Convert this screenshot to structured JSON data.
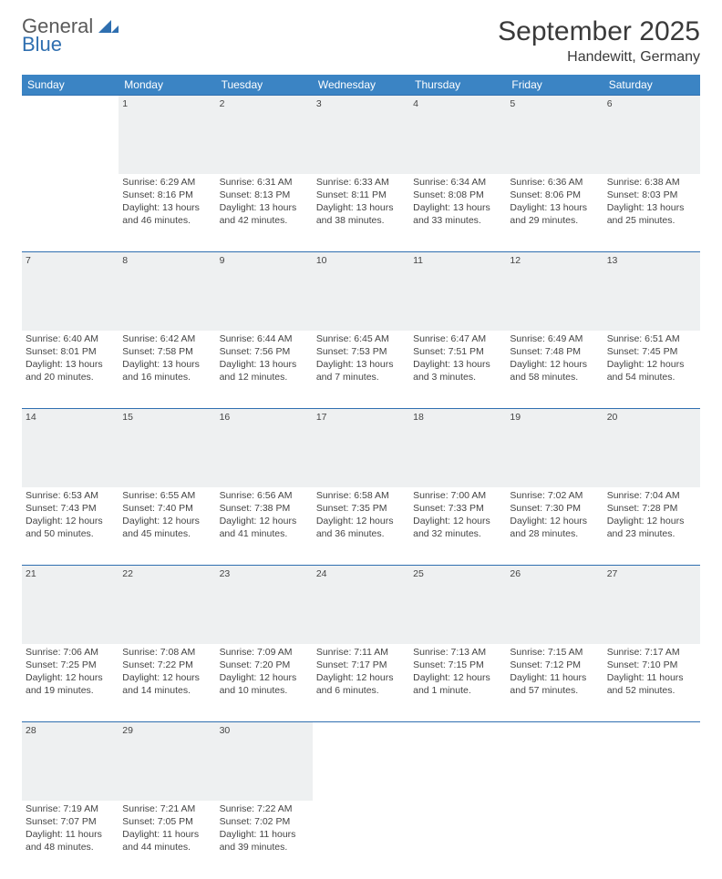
{
  "logo": {
    "word1": "General",
    "word2": "Blue",
    "word1_color": "#5a5a5a",
    "word2_color": "#2f6fb0",
    "mark_color": "#2f6fb0"
  },
  "title": "September 2025",
  "location": "Handewitt, Germany",
  "colors": {
    "header_bg": "#3b84c4",
    "header_text": "#ffffff",
    "daynum_bg": "#eef0f1",
    "row_divider": "#2f6fb0",
    "body_text": "#444444",
    "page_bg": "#ffffff"
  },
  "weekdays": [
    "Sunday",
    "Monday",
    "Tuesday",
    "Wednesday",
    "Thursday",
    "Friday",
    "Saturday"
  ],
  "weeks": [
    {
      "nums": [
        "",
        "1",
        "2",
        "3",
        "4",
        "5",
        "6"
      ],
      "cells": [
        [],
        [
          "Sunrise: 6:29 AM",
          "Sunset: 8:16 PM",
          "Daylight: 13 hours",
          "and 46 minutes."
        ],
        [
          "Sunrise: 6:31 AM",
          "Sunset: 8:13 PM",
          "Daylight: 13 hours",
          "and 42 minutes."
        ],
        [
          "Sunrise: 6:33 AM",
          "Sunset: 8:11 PM",
          "Daylight: 13 hours",
          "and 38 minutes."
        ],
        [
          "Sunrise: 6:34 AM",
          "Sunset: 8:08 PM",
          "Daylight: 13 hours",
          "and 33 minutes."
        ],
        [
          "Sunrise: 6:36 AM",
          "Sunset: 8:06 PM",
          "Daylight: 13 hours",
          "and 29 minutes."
        ],
        [
          "Sunrise: 6:38 AM",
          "Sunset: 8:03 PM",
          "Daylight: 13 hours",
          "and 25 minutes."
        ]
      ]
    },
    {
      "nums": [
        "7",
        "8",
        "9",
        "10",
        "11",
        "12",
        "13"
      ],
      "cells": [
        [
          "Sunrise: 6:40 AM",
          "Sunset: 8:01 PM",
          "Daylight: 13 hours",
          "and 20 minutes."
        ],
        [
          "Sunrise: 6:42 AM",
          "Sunset: 7:58 PM",
          "Daylight: 13 hours",
          "and 16 minutes."
        ],
        [
          "Sunrise: 6:44 AM",
          "Sunset: 7:56 PM",
          "Daylight: 13 hours",
          "and 12 minutes."
        ],
        [
          "Sunrise: 6:45 AM",
          "Sunset: 7:53 PM",
          "Daylight: 13 hours",
          "and 7 minutes."
        ],
        [
          "Sunrise: 6:47 AM",
          "Sunset: 7:51 PM",
          "Daylight: 13 hours",
          "and 3 minutes."
        ],
        [
          "Sunrise: 6:49 AM",
          "Sunset: 7:48 PM",
          "Daylight: 12 hours",
          "and 58 minutes."
        ],
        [
          "Sunrise: 6:51 AM",
          "Sunset: 7:45 PM",
          "Daylight: 12 hours",
          "and 54 minutes."
        ]
      ]
    },
    {
      "nums": [
        "14",
        "15",
        "16",
        "17",
        "18",
        "19",
        "20"
      ],
      "cells": [
        [
          "Sunrise: 6:53 AM",
          "Sunset: 7:43 PM",
          "Daylight: 12 hours",
          "and 50 minutes."
        ],
        [
          "Sunrise: 6:55 AM",
          "Sunset: 7:40 PM",
          "Daylight: 12 hours",
          "and 45 minutes."
        ],
        [
          "Sunrise: 6:56 AM",
          "Sunset: 7:38 PM",
          "Daylight: 12 hours",
          "and 41 minutes."
        ],
        [
          "Sunrise: 6:58 AM",
          "Sunset: 7:35 PM",
          "Daylight: 12 hours",
          "and 36 minutes."
        ],
        [
          "Sunrise: 7:00 AM",
          "Sunset: 7:33 PM",
          "Daylight: 12 hours",
          "and 32 minutes."
        ],
        [
          "Sunrise: 7:02 AM",
          "Sunset: 7:30 PM",
          "Daylight: 12 hours",
          "and 28 minutes."
        ],
        [
          "Sunrise: 7:04 AM",
          "Sunset: 7:28 PM",
          "Daylight: 12 hours",
          "and 23 minutes."
        ]
      ]
    },
    {
      "nums": [
        "21",
        "22",
        "23",
        "24",
        "25",
        "26",
        "27"
      ],
      "cells": [
        [
          "Sunrise: 7:06 AM",
          "Sunset: 7:25 PM",
          "Daylight: 12 hours",
          "and 19 minutes."
        ],
        [
          "Sunrise: 7:08 AM",
          "Sunset: 7:22 PM",
          "Daylight: 12 hours",
          "and 14 minutes."
        ],
        [
          "Sunrise: 7:09 AM",
          "Sunset: 7:20 PM",
          "Daylight: 12 hours",
          "and 10 minutes."
        ],
        [
          "Sunrise: 7:11 AM",
          "Sunset: 7:17 PM",
          "Daylight: 12 hours",
          "and 6 minutes."
        ],
        [
          "Sunrise: 7:13 AM",
          "Sunset: 7:15 PM",
          "Daylight: 12 hours",
          "and 1 minute."
        ],
        [
          "Sunrise: 7:15 AM",
          "Sunset: 7:12 PM",
          "Daylight: 11 hours",
          "and 57 minutes."
        ],
        [
          "Sunrise: 7:17 AM",
          "Sunset: 7:10 PM",
          "Daylight: 11 hours",
          "and 52 minutes."
        ]
      ]
    },
    {
      "nums": [
        "28",
        "29",
        "30",
        "",
        "",
        "",
        ""
      ],
      "cells": [
        [
          "Sunrise: 7:19 AM",
          "Sunset: 7:07 PM",
          "Daylight: 11 hours",
          "and 48 minutes."
        ],
        [
          "Sunrise: 7:21 AM",
          "Sunset: 7:05 PM",
          "Daylight: 11 hours",
          "and 44 minutes."
        ],
        [
          "Sunrise: 7:22 AM",
          "Sunset: 7:02 PM",
          "Daylight: 11 hours",
          "and 39 minutes."
        ],
        [],
        [],
        [],
        []
      ]
    }
  ]
}
